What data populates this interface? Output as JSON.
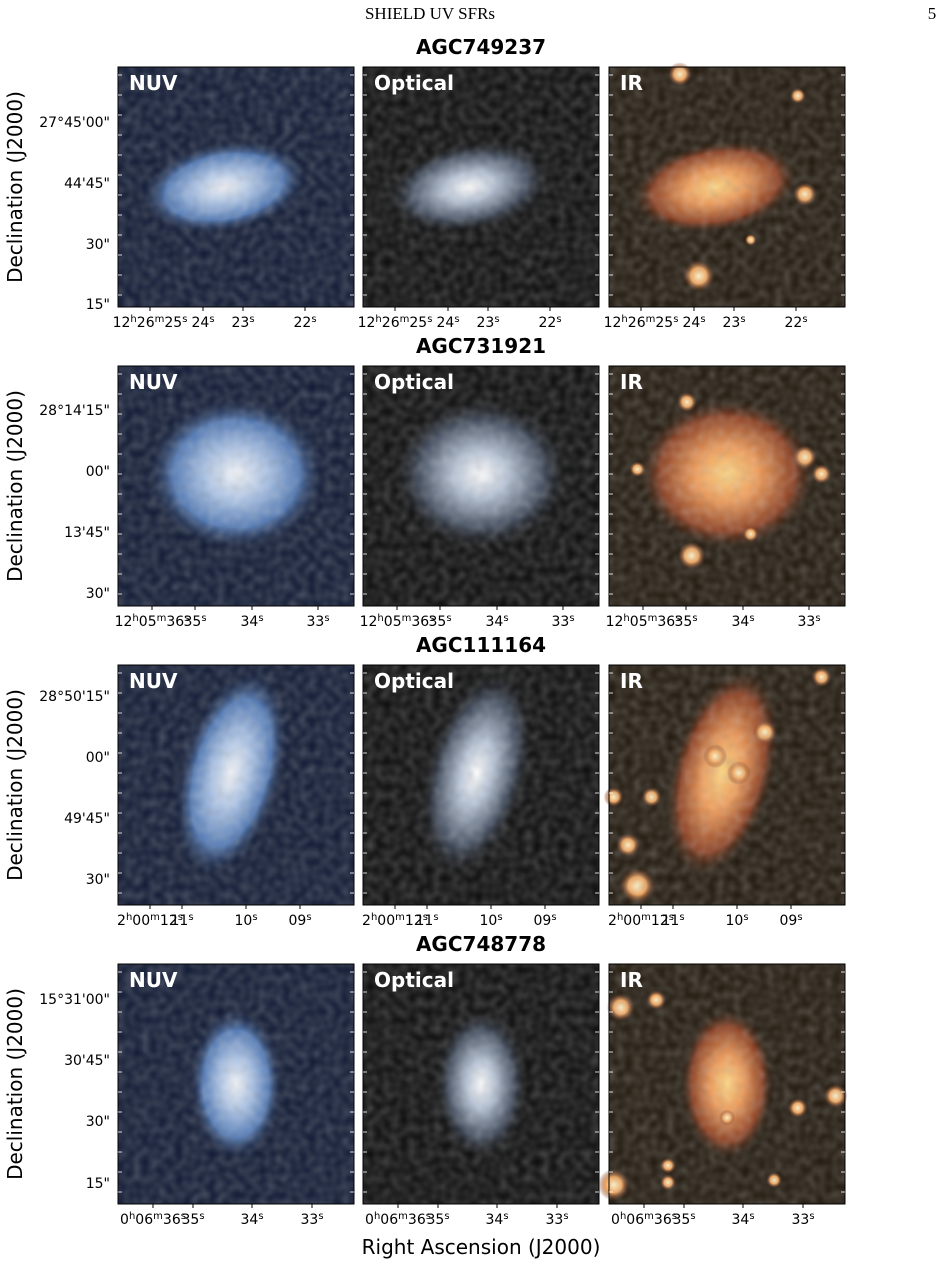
{
  "header": {
    "title": "SHIELD UV SFRs",
    "page_number": "5"
  },
  "x_axis_label": "Right Ascension (J2000)",
  "y_axis_label": "Declination (J2000)",
  "panel_labels": [
    "NUV",
    "Optical",
    "IR"
  ],
  "rows": [
    {
      "title": "AGC749237",
      "yticks": [
        "27°45'00\"",
        "44'45\"",
        "30\"",
        "15\""
      ],
      "xticks": [
        "12h26m25s",
        "24s",
        "23s",
        "22s"
      ]
    },
    {
      "title": "AGC731921",
      "yticks": [
        "28°14'15\"",
        "00\"",
        "13'45\"",
        "30\""
      ],
      "xticks": [
        "12h05m36s",
        "35s",
        "34s",
        "33s"
      ]
    },
    {
      "title": "AGC111164",
      "yticks": [
        "28°50'15\"",
        "00\"",
        "49'45\"",
        "30\""
      ],
      "xticks": [
        "2h00m12s",
        "11s",
        "10s",
        "09s"
      ]
    },
    {
      "title": "AGC748778",
      "yticks": [
        "15°31'00\"",
        "30'45\"",
        "30\"",
        "15\""
      ],
      "xticks": [
        "0h06m36s",
        "35s",
        "34s",
        "33s"
      ]
    }
  ]
}
